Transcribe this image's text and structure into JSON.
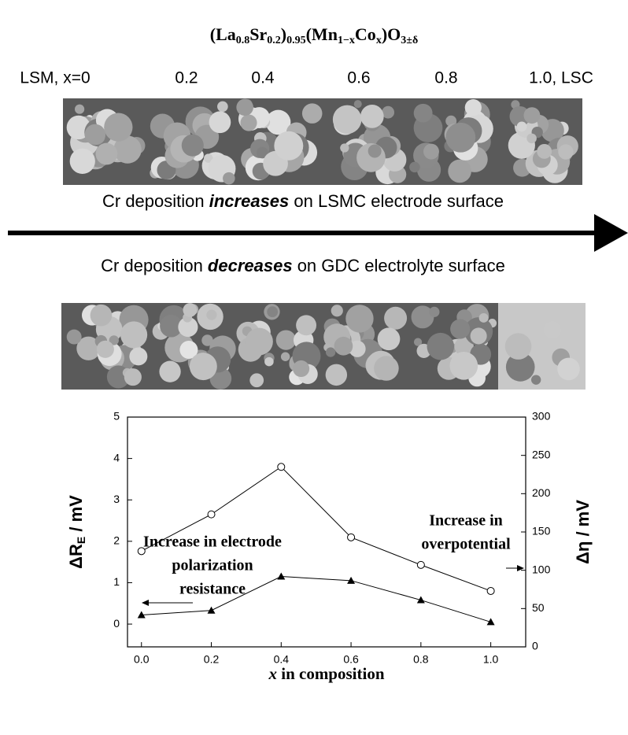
{
  "header": {
    "title": [
      {
        "text": "(La"
      },
      {
        "sub": "0.8"
      },
      {
        "text": "Sr"
      },
      {
        "sub": "0.2"
      },
      {
        "text": ")"
      },
      {
        "sub": "0.95"
      },
      {
        "text": "(Mn"
      },
      {
        "sub": "1−x"
      },
      {
        "text": "Co"
      },
      {
        "sub": "x"
      },
      {
        "text": ")O"
      },
      {
        "sub": "3±δ"
      }
    ],
    "compositions": [
      "LSM, x=0",
      "0.2",
      "0.4",
      "0.6",
      "0.8",
      "1.0, LSC"
    ]
  },
  "arrow": {
    "above": [
      "Cr deposition ",
      "increases",
      " on LSMC electrode surface"
    ],
    "below": [
      "Cr deposition ",
      "decreases",
      " on GDC electrolyte surface"
    ]
  },
  "chart_data": {
    "type": "line",
    "x": [
      0,
      0.2,
      0.4,
      0.6,
      0.8,
      1.0
    ],
    "xlim": [
      -0.04,
      1.1
    ],
    "xticks": [
      {
        "value": 0,
        "label": "0.0"
      },
      0.2,
      0.4,
      0.6,
      0.8,
      {
        "value": 1,
        "label": "1.0"
      }
    ],
    "ylim": [
      -0.55,
      5
    ],
    "yticks": [
      0,
      1,
      2,
      3,
      4,
      5
    ],
    "y2lim": [
      0,
      300
    ],
    "y2ticks": [
      0,
      50,
      100,
      150,
      200,
      250,
      300
    ],
    "xlabel": [
      "x",
      " in composition"
    ],
    "ylabel": [
      "ΔR",
      "E",
      " / mV"
    ],
    "y2label": "Δη / mV",
    "grid": false,
    "series": [
      {
        "marker": "triangle",
        "color": "#000000",
        "values": [
          0.22,
          0.33,
          1.15,
          1.05,
          0.58,
          0.05
        ]
      },
      {
        "marker": "circle",
        "axis": "y2",
        "color": "#000000",
        "values": [
          125,
          173,
          235,
          143,
          107,
          73
        ]
      }
    ],
    "annotations": [
      [
        "Increase in electrode",
        "polarization",
        "resistance"
      ],
      [
        "Increase in",
        "overpotential"
      ]
    ]
  }
}
